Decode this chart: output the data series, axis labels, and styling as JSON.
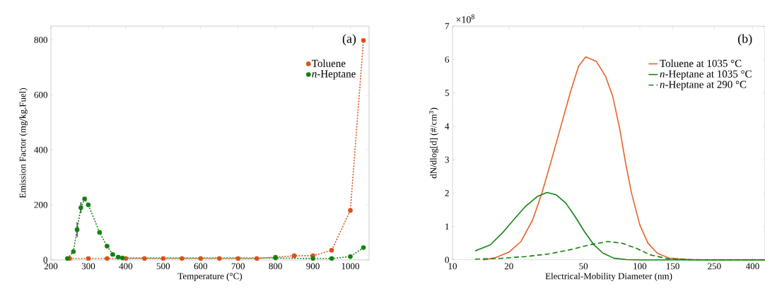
{
  "chart_data": [
    {
      "type": "line",
      "xlabel": "Temperature (°C)",
      "ylabel": "Emission Factor (mg/kg.Fuel)",
      "xlim": [
        200,
        1050
      ],
      "ylim": [
        0,
        850
      ],
      "xticks": [
        200,
        300,
        400,
        500,
        600,
        700,
        800,
        900,
        1000
      ],
      "yticks": [
        0,
        200,
        400,
        600,
        800
      ],
      "grid": false,
      "legend": "top right",
      "marker": "circle",
      "line_style": "dotted",
      "annotations": [
        "(a)"
      ],
      "series": [
        {
          "name": "Toluene",
          "color": "#d95319",
          "x": [
            250,
            300,
            350,
            400,
            450,
            500,
            550,
            600,
            650,
            700,
            750,
            800,
            850,
            900,
            950,
            1000,
            1035
          ],
          "values": [
            5,
            5,
            5,
            5,
            5,
            5,
            5,
            5,
            5,
            5,
            5,
            10,
            15,
            15,
            35,
            180,
            798
          ]
        },
        {
          "name": "*n*-Heptane",
          "color": "#128212",
          "x": [
            244,
            260,
            270,
            280,
            290,
            300,
            330,
            350,
            365,
            380,
            391,
            800,
            900,
            950,
            1000,
            1035
          ],
          "values": [
            5,
            30,
            110,
            190,
            222,
            200,
            100,
            50,
            20,
            10,
            7,
            7,
            5,
            5,
            12,
            45
          ],
          "errors": [
            null,
            null,
            25,
            18,
            null,
            null,
            null,
            null,
            null,
            null,
            null,
            null,
            null,
            null,
            null,
            null
          ]
        }
      ]
    },
    {
      "type": "line",
      "xlabel": "Electrical-Mobility Diameter (nm)",
      "ylabel": "dN/dlog[d] (#/cm$^{3}$)",
      "log": "x",
      "xlim": [
        10,
        466
      ],
      "ylim": [
        0,
        7
      ],
      "xticks": [
        10,
        20,
        50,
        100,
        150,
        250,
        400
      ],
      "yticks": [
        0,
        1,
        2,
        3,
        4,
        5,
        6,
        7
      ],
      "grid": false,
      "legend": "top right",
      "marker": "none",
      "annotations": [
        "(b)",
        "×10$^{8}$"
      ],
      "series": [
        {
          "name": "Toluene at 1035 °C",
          "color": "#e8602a",
          "line_style": "solid",
          "x": [
            14.6,
            16.8,
            20,
            23.2,
            26.8,
            30,
            33.8,
            37.9,
            42.5,
            47.1,
            51.4,
            58.5,
            65.6,
            71.7,
            78.3,
            84,
            90.3,
            100,
            110.6,
            124,
            144,
            186,
            248,
            466
          ],
          "values": [
            0,
            0.06,
            0.23,
            0.55,
            1.2,
            2,
            3,
            4,
            5,
            5.8,
            6.08,
            5.95,
            5.5,
            4.9,
            3.9,
            2.9,
            2,
            1.05,
            0.5,
            0.2,
            0.05,
            0.01,
            0,
            0
          ]
        },
        {
          "name": "*n*-Heptane at 1035 °C",
          "color": "#128212",
          "line_style": "solid",
          "x": [
            13.2,
            15.9,
            18.4,
            21.2,
            24.5,
            28.4,
            31.9,
            35.8,
            40.3,
            45.1,
            50.6,
            56.9,
            63.7,
            72.8,
            85,
            100,
            466
          ],
          "values": [
            0.27,
            0.45,
            0.8,
            1.2,
            1.6,
            1.9,
            2.02,
            1.95,
            1.7,
            1.3,
            0.85,
            0.45,
            0.2,
            0.05,
            0.01,
            0,
            0
          ]
        },
        {
          "name": "*n*-Heptane at 290 °C",
          "color": "#128212",
          "line_style": "dashed",
          "x": [
            13.2,
            18.4,
            24.5,
            32.8,
            43.7,
            53.6,
            67.6,
            80.3,
            95.7,
            114,
            140,
            186,
            248,
            466
          ],
          "values": [
            0.02,
            0.05,
            0.1,
            0.18,
            0.32,
            0.45,
            0.55,
            0.5,
            0.35,
            0.15,
            0.04,
            0.01,
            0,
            0
          ]
        }
      ]
    }
  ]
}
